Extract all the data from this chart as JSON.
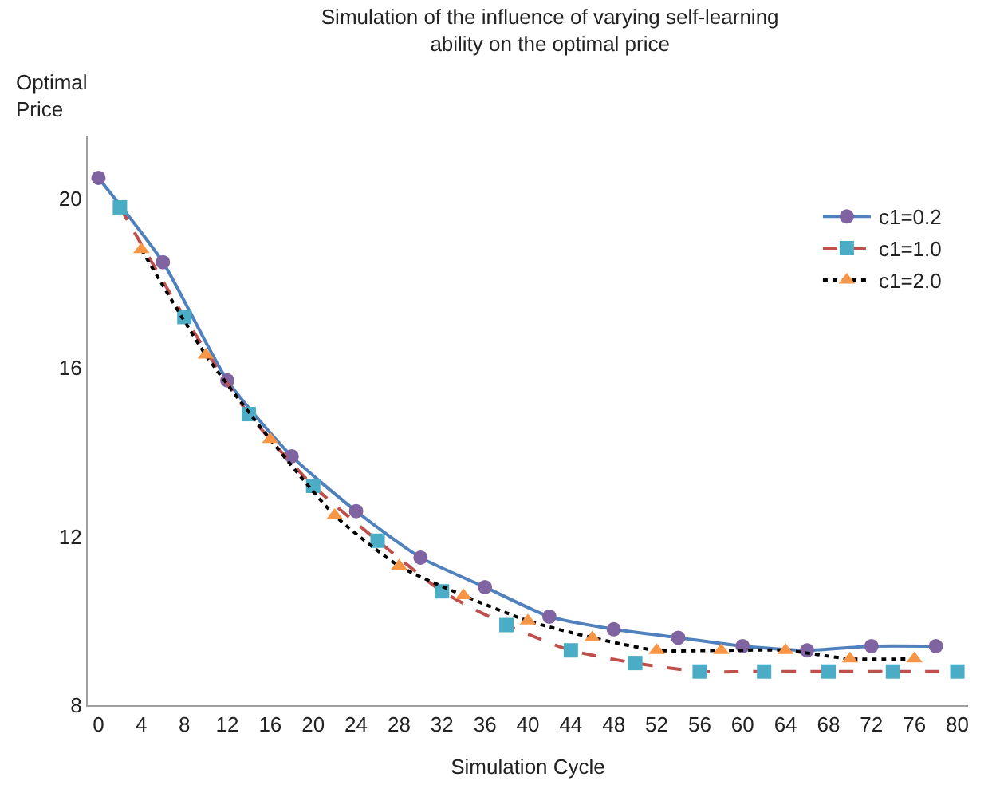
{
  "chart_data": {
    "type": "line",
    "title": "Simulation of the influence of varying self-learning\nability on the optimal price",
    "xlabel": "Simulation Cycle",
    "ylabel": "Optimal\nPrice",
    "xlim": [
      -1,
      81
    ],
    "xticks": [
      0,
      4,
      8,
      12,
      16,
      20,
      24,
      28,
      32,
      36,
      40,
      44,
      48,
      52,
      56,
      60,
      64,
      68,
      72,
      76,
      80
    ],
    "ylim": [
      8,
      21.5
    ],
    "yticks": [
      8,
      12,
      16,
      20
    ],
    "legend": "top right",
    "series": [
      {
        "name": "c1=0.2",
        "color": "#4f81bd",
        "colors": [
          "#8064a2",
          "#8064a2",
          "#8064a2",
          "#8064a2",
          "#8064a2",
          "#8064a2",
          "#8064a2",
          "#8064a2",
          "#8064a2",
          "#8064a2",
          "#8064a2",
          "#8064a2",
          "#8064a2",
          "#8064a2"
        ],
        "marker": "circle",
        "line_style": "solid",
        "x": [
          0,
          6,
          12,
          18,
          24,
          30,
          36,
          42,
          48,
          54,
          60,
          66,
          72,
          78
        ],
        "values": [
          20.5,
          18.5,
          15.7,
          13.9,
          12.6,
          11.5,
          10.8,
          10.1,
          9.8,
          9.6,
          9.4,
          9.3,
          9.4,
          9.4
        ]
      },
      {
        "name": "c1=1.0",
        "color": "#c0504d",
        "colors": [
          "#4bacc6",
          "#4bacc6",
          "#4bacc6",
          "#4bacc6",
          "#4bacc6",
          "#4bacc6",
          "#4bacc6",
          "#4bacc6",
          "#4bacc6",
          "#4bacc6",
          "#4bacc6",
          "#4bacc6",
          "#4bacc6",
          "#4bacc6"
        ],
        "marker": "square",
        "line_style": "dashed",
        "x": [
          2,
          8,
          14,
          20,
          26,
          32,
          38,
          44,
          50,
          56,
          62,
          68,
          74,
          80
        ],
        "values": [
          19.8,
          17.2,
          14.9,
          13.2,
          11.9,
          10.7,
          9.9,
          9.3,
          9.0,
          8.8,
          8.8,
          8.8,
          8.8,
          8.8
        ]
      },
      {
        "name": "c1=2.0",
        "color": "#000000",
        "colors": [
          "#f79646",
          "#f79646",
          "#f79646",
          "#f79646",
          "#f79646",
          "#f79646",
          "#f79646",
          "#f79646",
          "#f79646",
          "#f79646",
          "#f79646",
          "#f79646",
          "#f79646"
        ],
        "marker": "triangle",
        "line_style": "dotted",
        "x": [
          4,
          10,
          16,
          22,
          28,
          34,
          40,
          46,
          52,
          58,
          64,
          70,
          76
        ],
        "values": [
          18.8,
          16.3,
          14.3,
          12.5,
          11.3,
          10.6,
          10.0,
          9.6,
          9.3,
          9.3,
          9.3,
          9.1,
          9.1
        ]
      }
    ]
  }
}
